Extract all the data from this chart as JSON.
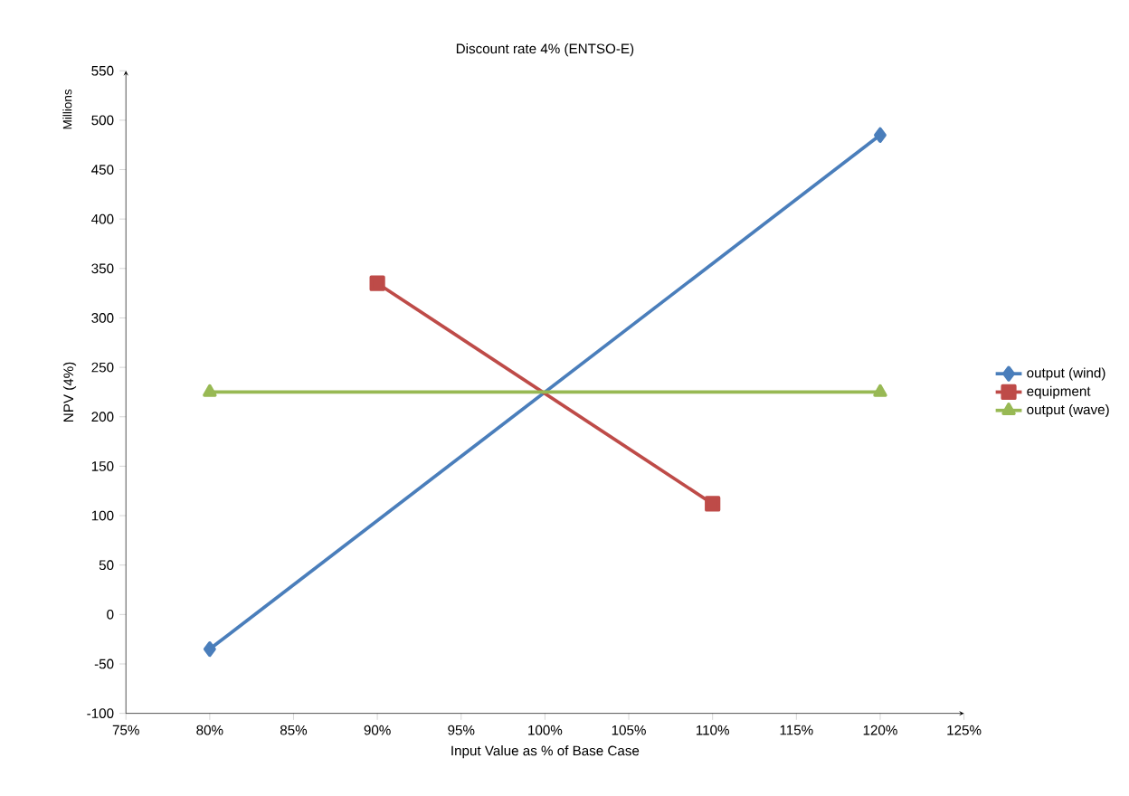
{
  "chart_data": {
    "type": "line",
    "title": "Discount rate 4% (ENTSO-E)",
    "xlabel": "Input Value as % of Base Case",
    "ylabel": "NPV (4%)",
    "annotations": [
      "Millions"
    ],
    "series": [
      {
        "name": "output (wind)",
        "color": "#4a7ebb",
        "marker": "diamond",
        "x": [
          80,
          120
        ],
        "values": [
          -35,
          485
        ]
      },
      {
        "name": "equipment",
        "color": "#be4b48",
        "marker": "square",
        "x": [
          90,
          110
        ],
        "values": [
          335,
          112
        ]
      },
      {
        "name": "output (wave)",
        "color": "#98b954",
        "marker": "triangle",
        "x": [
          80,
          120
        ],
        "values": [
          225,
          225
        ]
      }
    ],
    "xlim": [
      75,
      125
    ],
    "xticks": [
      {
        "value": 75,
        "label": "75%"
      },
      {
        "value": 80,
        "label": "80%"
      },
      {
        "value": 85,
        "label": "85%"
      },
      {
        "value": 90,
        "label": "90%"
      },
      {
        "value": 95,
        "label": "95%"
      },
      {
        "value": 100,
        "label": "100%"
      },
      {
        "value": 105,
        "label": "105%"
      },
      {
        "value": 110,
        "label": "110%"
      },
      {
        "value": 115,
        "label": "115%"
      },
      {
        "value": 120,
        "label": "120%"
      },
      {
        "value": 125,
        "label": "125%"
      }
    ],
    "ylim": [
      -100,
      550
    ],
    "yticks": [
      -100,
      -50,
      0,
      50,
      100,
      150,
      200,
      250,
      300,
      350,
      400,
      450,
      500,
      550
    ],
    "grid": false,
    "legend": "right",
    "line_style": "solid"
  }
}
